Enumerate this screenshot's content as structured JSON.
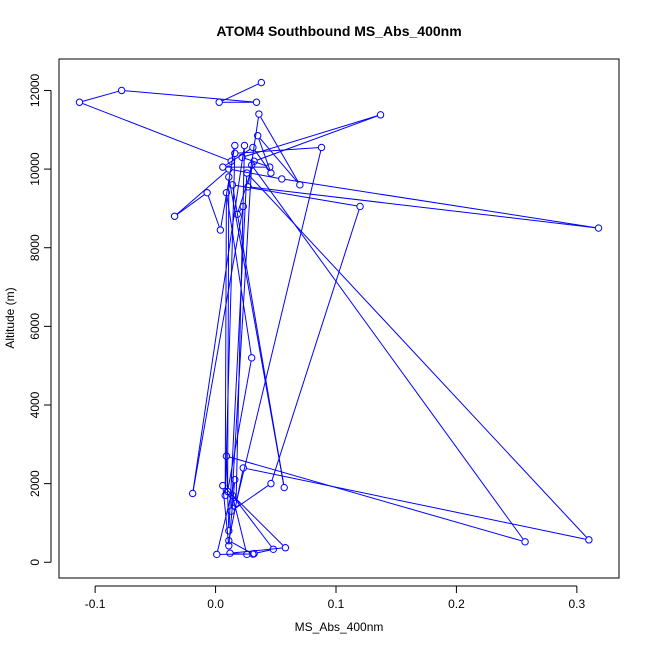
{
  "chart_data": {
    "type": "line",
    "title": "ATOM4 Southbound MS_Abs_400nm",
    "xlabel": "MS_Abs_400nm",
    "ylabel": "Altitude (m)",
    "xlim": [
      -0.13,
      0.335
    ],
    "ylim": [
      -400,
      12800
    ],
    "xticks": [
      -0.1,
      0.0,
      0.1,
      0.2,
      0.3
    ],
    "xtick_labels": [
      "-0.1",
      "0.0",
      "0.1",
      "0.2",
      "0.3"
    ],
    "yticks": [
      0,
      2000,
      4000,
      6000,
      8000,
      10000,
      12000
    ],
    "ytick_labels": [
      "0",
      "2000",
      "4000",
      "6000",
      "8000",
      "10000",
      "12000"
    ],
    "grid": false,
    "series": [
      {
        "color": "#0000ff",
        "marker": "open-circle",
        "points": [
          {
            "x": 0.032,
            "y": 220
          },
          {
            "x": 0.048,
            "y": 330
          },
          {
            "x": 0.014,
            "y": 1700
          },
          {
            "x": 0.026,
            "y": 200
          },
          {
            "x": 0.012,
            "y": 230
          },
          {
            "x": 0.058,
            "y": 370
          },
          {
            "x": 0.006,
            "y": 1950
          },
          {
            "x": 0.011,
            "y": 420
          },
          {
            "x": 0.016,
            "y": 2100
          },
          {
            "x": 0.001,
            "y": 200
          },
          {
            "x": 0.031,
            "y": 210
          },
          {
            "x": 0.011,
            "y": 550
          },
          {
            "x": 0.023,
            "y": 2400
          },
          {
            "x": 0.31,
            "y": 570
          },
          {
            "x": 0.026,
            "y": 9900
          },
          {
            "x": 0.011,
            "y": 800
          },
          {
            "x": 0.009,
            "y": 2700
          },
          {
            "x": 0.257,
            "y": 520
          },
          {
            "x": 0.03,
            "y": 10100
          },
          {
            "x": 0.013,
            "y": 1300
          },
          {
            "x": 0.046,
            "y": 2000
          },
          {
            "x": 0.12,
            "y": 9050
          },
          {
            "x": 0.014,
            "y": 9600
          },
          {
            "x": 0.057,
            "y": 1900
          },
          {
            "x": 0.011,
            "y": 9800
          },
          {
            "x": 0.01,
            "y": 1800
          },
          {
            "x": 0.03,
            "y": 5200
          },
          {
            "x": 0.009,
            "y": 9400
          },
          {
            "x": 0.008,
            "y": 1700
          },
          {
            "x": 0.016,
            "y": 10400
          },
          {
            "x": 0.088,
            "y": 10550
          },
          {
            "x": 0.017,
            "y": 1500
          },
          {
            "x": 0.024,
            "y": 10600
          },
          {
            "x": -0.019,
            "y": 1750
          },
          {
            "x": 0.023,
            "y": 9050
          },
          {
            "x": 0.018,
            "y": 8850
          },
          {
            "x": 0.032,
            "y": 10200
          },
          {
            "x": 0.137,
            "y": 11380
          },
          {
            "x": 0.022,
            "y": 10300
          },
          {
            "x": 0.045,
            "y": 10050
          },
          {
            "x": 0.006,
            "y": 10050
          },
          {
            "x": 0.031,
            "y": 10550
          },
          {
            "x": 0.046,
            "y": 9900
          },
          {
            "x": 0.035,
            "y": 10850
          },
          {
            "x": 0.07,
            "y": 9600
          },
          {
            "x": 0.036,
            "y": 11400
          },
          {
            "x": 0.027,
            "y": 9550
          },
          {
            "x": 0.318,
            "y": 8500
          },
          {
            "x": 0.055,
            "y": 9750
          },
          {
            "x": 0.011,
            "y": 10000
          },
          {
            "x": -0.034,
            "y": 8800
          },
          {
            "x": -0.007,
            "y": 9400
          },
          {
            "x": 0.004,
            "y": 8450
          },
          {
            "x": 0.016,
            "y": 10600
          },
          {
            "x": 0.013,
            "y": 10200
          },
          {
            "x": -0.113,
            "y": 11700
          },
          {
            "x": -0.078,
            "y": 12000
          },
          {
            "x": 0.034,
            "y": 11700
          },
          {
            "x": 0.003,
            "y": 11700
          },
          {
            "x": 0.038,
            "y": 12200
          }
        ]
      }
    ]
  }
}
